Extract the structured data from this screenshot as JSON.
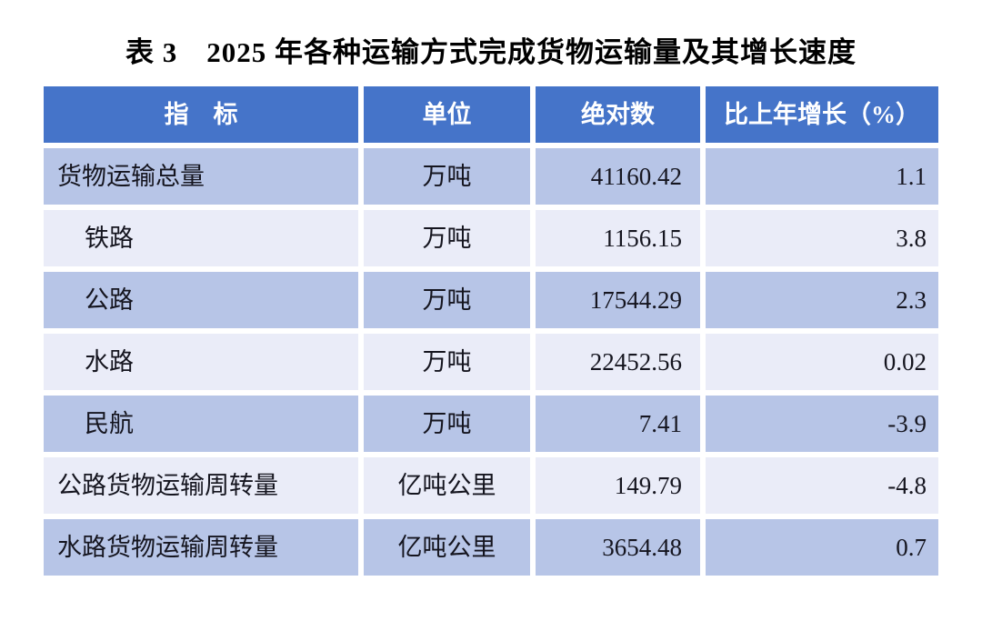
{
  "title": "表 3　2025 年各种运输方式完成货物运输量及其增长速度",
  "theme": {
    "header_bg": "#4574C9",
    "header_text": "#FFFFFF",
    "band_medium": "#B7C5E7",
    "band_light": "#EAECF8",
    "body_text": "#15151F",
    "title_text": "#000000",
    "page_bg": "#FFFFFF"
  },
  "table": {
    "headers": [
      "指　标",
      "单位",
      "绝对数",
      "比上年增长（%）"
    ],
    "rows": [
      {
        "indicator": "货物运输总量",
        "unit": "万吨",
        "value": "41160.42",
        "growth": "1.1"
      },
      {
        "indicator": "铁路",
        "unit": "万吨",
        "value": "1156.15",
        "growth": "3.8"
      },
      {
        "indicator": "公路",
        "unit": "万吨",
        "value": "17544.29",
        "growth": "2.3"
      },
      {
        "indicator": "水路",
        "unit": "万吨",
        "value": "22452.56",
        "growth": "0.02"
      },
      {
        "indicator": "民航",
        "unit": "万吨",
        "value": "7.41",
        "growth": "-3.9"
      },
      {
        "indicator": "公路货物运输周转量",
        "unit": "亿吨公里",
        "value": "149.79",
        "growth": "-4.8"
      },
      {
        "indicator": "水路货物运输周转量",
        "unit": "亿吨公里",
        "value": "3654.48",
        "growth": "0.7"
      }
    ]
  }
}
